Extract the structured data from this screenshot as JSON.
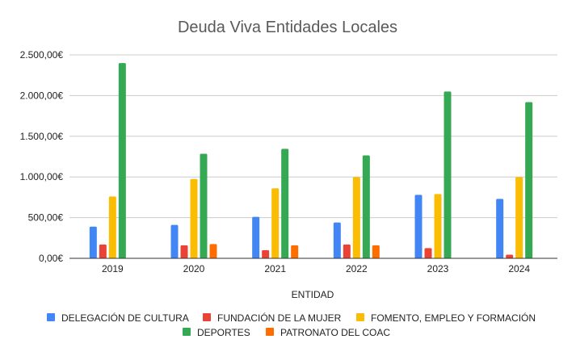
{
  "chart_data": {
    "type": "bar",
    "title": "Deuda Viva Entidades Locales",
    "xlabel": "ENTIDAD",
    "ylabel": "",
    "categories": [
      "2019",
      "2020",
      "2021",
      "2022",
      "2023",
      "2024"
    ],
    "ylim": [
      0,
      2500
    ],
    "yticks": [
      0,
      500,
      1000,
      1500,
      2000,
      2500
    ],
    "ytick_labels": [
      "0,00€",
      "500,00€",
      "1.000,00€",
      "1.500,00€",
      "2.000,00€",
      "2.500,00€"
    ],
    "grid": true,
    "legend_position": "bottom",
    "series": [
      {
        "name": "DELEGACIÓN DE CULTURA",
        "color": "#4285f4",
        "values": [
          390,
          410,
          510,
          440,
          780,
          730
        ]
      },
      {
        "name": "FUNDACIÓN DE LA MUJER",
        "color": "#ea4335",
        "values": [
          170,
          160,
          100,
          170,
          125,
          45
        ]
      },
      {
        "name": "FOMENTO, EMPLEO Y FORMACIÓN",
        "color": "#fbbc04",
        "values": [
          760,
          975,
          860,
          1000,
          790,
          1000
        ]
      },
      {
        "name": "DEPORTES",
        "color": "#34a853",
        "values": [
          2400,
          1285,
          1345,
          1265,
          2050,
          1920
        ]
      },
      {
        "name": "PATRONATO DEL COAC",
        "color": "#ff6d01",
        "values": [
          null,
          175,
          160,
          160,
          null,
          null
        ]
      }
    ]
  }
}
